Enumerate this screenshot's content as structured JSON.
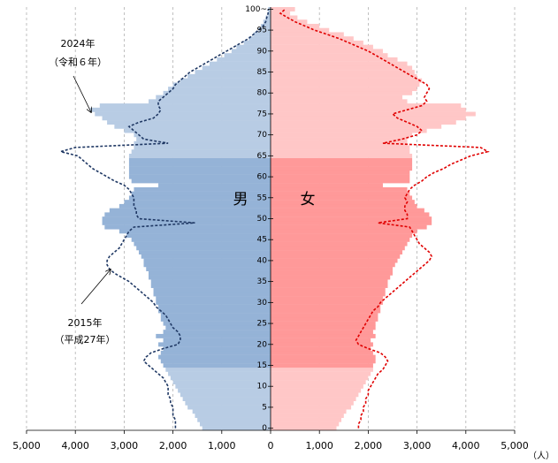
{
  "chart_data": {
    "type": "pyramid",
    "categories": [
      0,
      null,
      null,
      null,
      null,
      5,
      null,
      null,
      null,
      null,
      10,
      null,
      null,
      null,
      null,
      15,
      null,
      null,
      null,
      null,
      20,
      null,
      null,
      null,
      null,
      25,
      null,
      null,
      null,
      null,
      30,
      null,
      null,
      null,
      null,
      35,
      null,
      null,
      null,
      null,
      40,
      null,
      null,
      null,
      null,
      45,
      null,
      null,
      null,
      null,
      50,
      null,
      null,
      null,
      null,
      55,
      null,
      null,
      null,
      null,
      60,
      null,
      null,
      null,
      null,
      65,
      null,
      null,
      null,
      null,
      70,
      null,
      null,
      null,
      null,
      75,
      null,
      null,
      null,
      null,
      80,
      null,
      null,
      null,
      null,
      85,
      null,
      null,
      null,
      null,
      90,
      null,
      null,
      null,
      null,
      95,
      null,
      null,
      null,
      null,
      "100~"
    ],
    "xlim": [
      0,
      5000
    ],
    "xticks": [
      0,
      {
        "value": 1000,
        "label": "1,000"
      },
      {
        "value": 2000,
        "label": "2,000"
      },
      {
        "value": 3000,
        "label": "3,000"
      },
      {
        "value": 4000,
        "label": "4,000"
      },
      {
        "value": 5000,
        "label": "5,000"
      }
    ],
    "x_label": "（人）",
    "grid": true,
    "band": [
      15,
      64
    ],
    "series": [
      {
        "name": "男",
        "type": "bar",
        "side": "left",
        "color": "#b8cce4",
        "band_color": "#95b3d7",
        "values": [
          1400,
          1450,
          1500,
          1550,
          1600,
          1700,
          1750,
          1800,
          1850,
          1900,
          1950,
          2000,
          2050,
          2100,
          2150,
          2200,
          2250,
          2300,
          2250,
          2200,
          2300,
          2200,
          2350,
          2200,
          2150,
          2200,
          2250,
          2250,
          2300,
          2300,
          2350,
          2350,
          2400,
          2400,
          2450,
          2450,
          2500,
          2500,
          2550,
          2600,
          2600,
          2650,
          2700,
          2750,
          2800,
          2850,
          2950,
          3100,
          3400,
          3450,
          3450,
          3400,
          3300,
          3100,
          3000,
          2900,
          2850,
          2800,
          2300,
          2850,
          2900,
          2900,
          2900,
          2900,
          2900,
          2900,
          2850,
          2800,
          2800,
          2750,
          2800,
          3000,
          3200,
          3350,
          3450,
          3600,
          3700,
          3500,
          2500,
          2350,
          2200,
          2100,
          2000,
          1850,
          1700,
          1550,
          1400,
          1250,
          1100,
          950,
          800,
          700,
          550,
          450,
          350,
          250,
          200,
          150,
          100,
          50,
          50
        ]
      },
      {
        "name": "女",
        "type": "bar",
        "side": "right",
        "color": "#ffc7c7",
        "band_color": "#ff9999",
        "values": [
          1350,
          1400,
          1450,
          1500,
          1550,
          1650,
          1700,
          1750,
          1800,
          1850,
          1900,
          1950,
          2000,
          2050,
          2100,
          2100,
          2150,
          2150,
          2100,
          2050,
          2100,
          2050,
          2150,
          2100,
          2150,
          2150,
          2200,
          2200,
          2250,
          2250,
          2300,
          2300,
          2350,
          2350,
          2400,
          2400,
          2450,
          2500,
          2500,
          2550,
          2600,
          2650,
          2700,
          2750,
          2800,
          2850,
          2900,
          3000,
          3200,
          3300,
          3300,
          3250,
          3150,
          3000,
          2950,
          2900,
          2850,
          2800,
          2300,
          2850,
          2850,
          2850,
          2900,
          2900,
          2900,
          2900,
          2850,
          2850,
          2800,
          2800,
          2900,
          3200,
          3500,
          3800,
          4000,
          4200,
          4000,
          3900,
          2800,
          2700,
          2900,
          3000,
          3050,
          3100,
          3000,
          2950,
          2900,
          2800,
          2600,
          2400,
          2300,
          2100,
          1900,
          1700,
          1500,
          1200,
          1000,
          750,
          550,
          400,
          500
        ]
      },
      {
        "type": "line",
        "side": "left",
        "color": "#1f3864",
        "values": [
          1950,
          1950,
          1950,
          2000,
          2000,
          2000,
          2050,
          2050,
          2100,
          2100,
          2100,
          2150,
          2200,
          2300,
          2400,
          2500,
          2600,
          2550,
          2450,
          2200,
          1900,
          1850,
          1850,
          1900,
          2000,
          2050,
          2100,
          2150,
          2250,
          2350,
          2400,
          2500,
          2600,
          2700,
          2800,
          2900,
          3050,
          3200,
          3300,
          3350,
          3350,
          3300,
          3200,
          3100,
          3050,
          3000,
          2950,
          2900,
          2800,
          1550,
          2700,
          2750,
          2750,
          2800,
          2800,
          2800,
          2850,
          2900,
          3000,
          3200,
          3350,
          3500,
          3650,
          3750,
          3850,
          3950,
          4300,
          4000,
          2100,
          2600,
          2700,
          2800,
          2900,
          2700,
          2400,
          2300,
          2250,
          2300,
          2300,
          2200,
          2100,
          2000,
          1950,
          1850,
          1750,
          1650,
          1500,
          1350,
          1200,
          1050,
          900,
          750,
          600,
          450,
          350,
          250,
          150,
          100,
          80,
          50,
          50
        ]
      },
      {
        "type": "line",
        "side": "right",
        "color": "#e00000",
        "values": [
          1800,
          1800,
          1850,
          1850,
          1900,
          1900,
          1950,
          1950,
          2000,
          2000,
          2050,
          2100,
          2150,
          2200,
          2300,
          2350,
          2400,
          2350,
          2250,
          2000,
          1800,
          1750,
          1800,
          1850,
          1900,
          1950,
          2000,
          2050,
          2100,
          2200,
          2250,
          2350,
          2450,
          2550,
          2650,
          2750,
          2850,
          2950,
          3050,
          3150,
          3250,
          3300,
          3250,
          3150,
          3050,
          3000,
          2950,
          2900,
          2850,
          2200,
          2800,
          2800,
          2750,
          2750,
          2800,
          2750,
          2800,
          2850,
          2950,
          3100,
          3200,
          3350,
          3550,
          3700,
          3900,
          4100,
          4450,
          4300,
          2300,
          2700,
          3000,
          3100,
          3000,
          2800,
          2600,
          2500,
          2800,
          3100,
          3200,
          3150,
          3200,
          3250,
          3200,
          3050,
          2900,
          2750,
          2600,
          2450,
          2300,
          2150,
          2000,
          1800,
          1600,
          1400,
          1150,
          900,
          700,
          500,
          350,
          200,
          300
        ]
      }
    ],
    "annotations": [
      {
        "text": "2024年"
      },
      {
        "text": "（令和６年）"
      },
      {
        "text": "2015年"
      },
      {
        "text": "（平成27年）"
      }
    ]
  }
}
